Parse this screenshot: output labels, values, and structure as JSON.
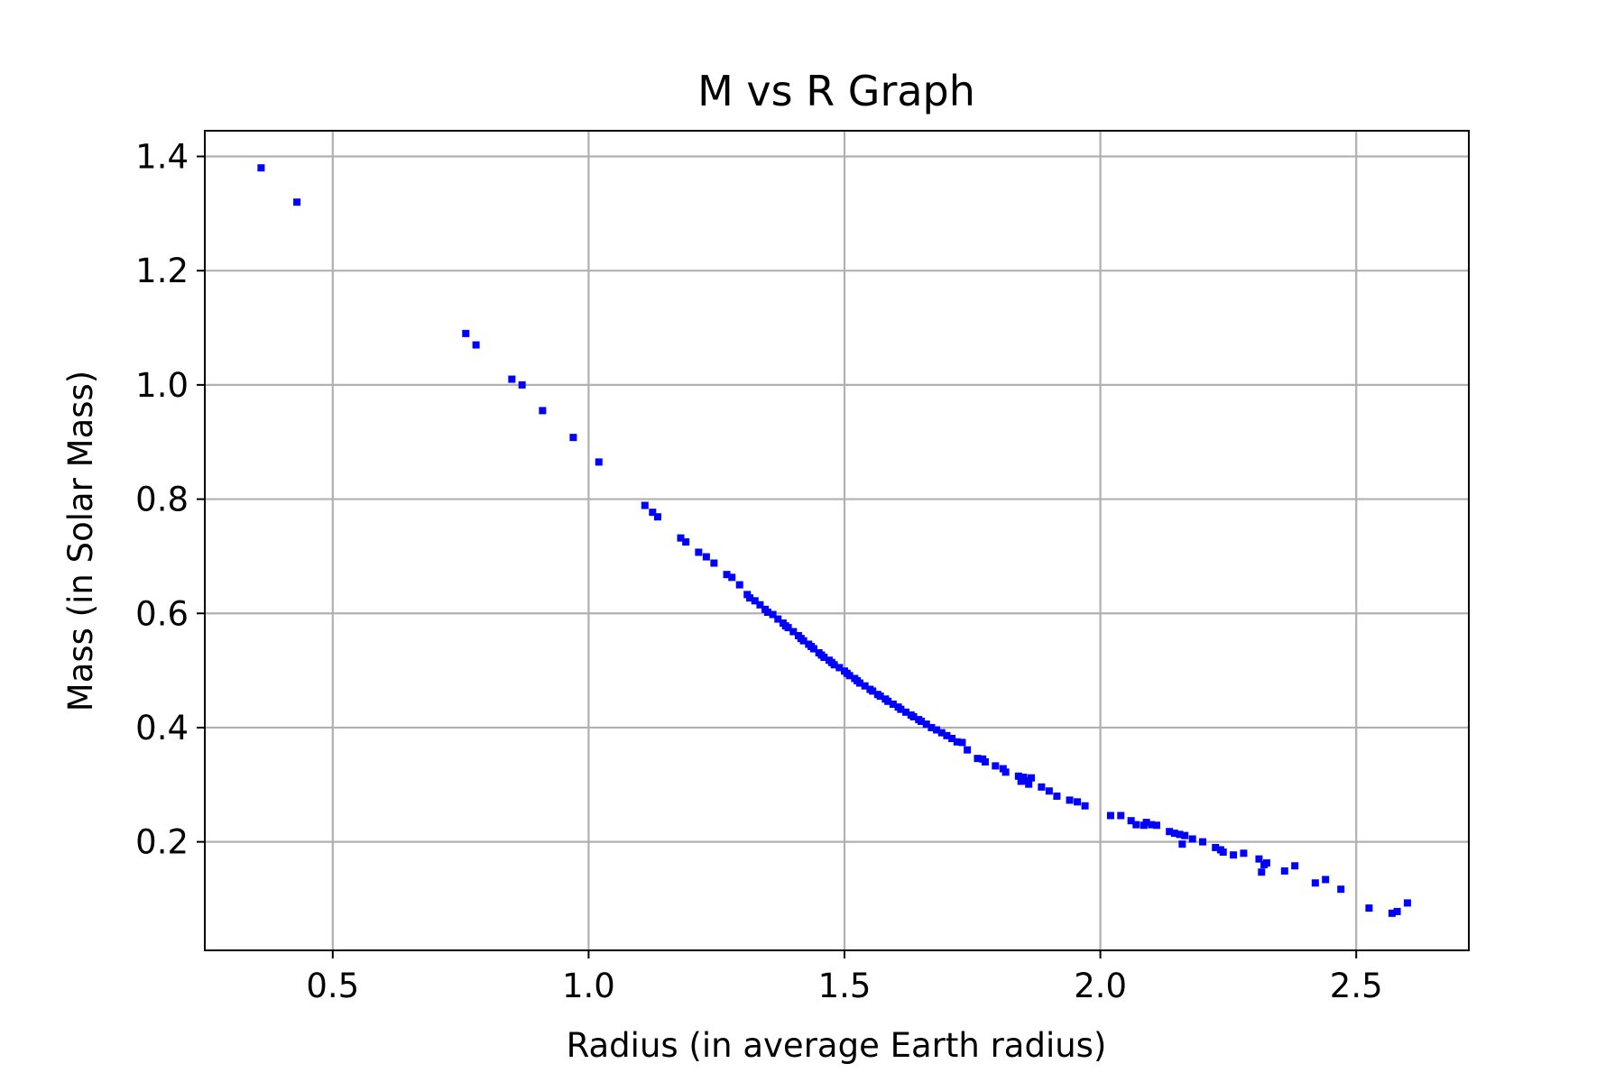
{
  "chart_data": {
    "type": "scatter",
    "title": "M vs R Graph",
    "xlabel": "Radius (in average Earth radius)",
    "ylabel": "Mass (in Solar Mass)",
    "xlim": [
      0.25,
      2.72
    ],
    "ylim": [
      0.01,
      1.445
    ],
    "xticks": [
      0.5,
      1.0,
      1.5,
      2.0,
      2.5
    ],
    "xtick_labels": [
      "0.5",
      "1.0",
      "1.5",
      "2.0",
      "2.5"
    ],
    "yticks": [
      0.2,
      0.4,
      0.6,
      0.8,
      1.0,
      1.2,
      1.4
    ],
    "ytick_labels": [
      "0.2",
      "0.4",
      "0.6",
      "0.8",
      "1.0",
      "1.2",
      "1.4"
    ],
    "grid": true,
    "marker_color": "#0000ff",
    "grid_color": "#b0b0b0",
    "series": [
      {
        "points": [
          [
            0.36,
            1.38
          ],
          [
            0.43,
            1.32
          ],
          [
            0.76,
            1.09
          ],
          [
            0.78,
            1.07
          ],
          [
            0.85,
            1.01
          ],
          [
            0.87,
            1.0
          ],
          [
            0.91,
            0.955
          ],
          [
            0.97,
            0.908
          ],
          [
            1.02,
            0.865
          ],
          [
            1.11,
            0.789
          ],
          [
            1.125,
            0.777
          ],
          [
            1.135,
            0.769
          ],
          [
            1.18,
            0.732
          ],
          [
            1.19,
            0.725
          ],
          [
            1.215,
            0.707
          ],
          [
            1.23,
            0.699
          ],
          [
            1.245,
            0.688
          ],
          [
            1.27,
            0.668
          ],
          [
            1.28,
            0.663
          ],
          [
            1.295,
            0.65
          ],
          [
            1.31,
            0.633
          ],
          [
            1.315,
            0.627
          ],
          [
            1.325,
            0.622
          ],
          [
            1.335,
            0.615
          ],
          [
            1.345,
            0.607
          ],
          [
            1.35,
            0.602
          ],
          [
            1.36,
            0.598
          ],
          [
            1.37,
            0.59
          ],
          [
            1.38,
            0.583
          ],
          [
            1.385,
            0.578
          ],
          [
            1.39,
            0.575
          ],
          [
            1.4,
            0.568
          ],
          [
            1.41,
            0.561
          ],
          [
            1.415,
            0.556
          ],
          [
            1.42,
            0.552
          ],
          [
            1.43,
            0.546
          ],
          [
            1.435,
            0.542
          ],
          [
            1.44,
            0.538
          ],
          [
            1.45,
            0.531
          ],
          [
            1.455,
            0.527
          ],
          [
            1.46,
            0.523
          ],
          [
            1.47,
            0.518
          ],
          [
            1.475,
            0.514
          ],
          [
            1.48,
            0.51
          ],
          [
            1.49,
            0.505
          ],
          [
            1.5,
            0.499
          ],
          [
            1.505,
            0.495
          ],
          [
            1.51,
            0.491
          ],
          [
            1.52,
            0.486
          ],
          [
            1.525,
            0.482
          ],
          [
            1.53,
            0.478
          ],
          [
            1.54,
            0.473
          ],
          [
            1.55,
            0.467
          ],
          [
            1.555,
            0.464
          ],
          [
            1.565,
            0.458
          ],
          [
            1.57,
            0.455
          ],
          [
            1.58,
            0.45
          ],
          [
            1.585,
            0.446
          ],
          [
            1.595,
            0.441
          ],
          [
            1.605,
            0.436
          ],
          [
            1.61,
            0.432
          ],
          [
            1.62,
            0.427
          ],
          [
            1.63,
            0.422
          ],
          [
            1.635,
            0.419
          ],
          [
            1.645,
            0.414
          ],
          [
            1.65,
            0.411
          ],
          [
            1.66,
            0.406
          ],
          [
            1.67,
            0.4
          ],
          [
            1.68,
            0.396
          ],
          [
            1.69,
            0.391
          ],
          [
            1.7,
            0.386
          ],
          [
            1.71,
            0.381
          ],
          [
            1.72,
            0.375
          ],
          [
            1.73,
            0.374
          ],
          [
            1.74,
            0.361
          ],
          [
            1.76,
            0.346
          ],
          [
            1.77,
            0.345
          ],
          [
            1.775,
            0.34
          ],
          [
            1.795,
            0.333
          ],
          [
            1.81,
            0.328
          ],
          [
            1.815,
            0.322
          ],
          [
            1.84,
            0.315
          ],
          [
            1.845,
            0.306
          ],
          [
            1.85,
            0.313
          ],
          [
            1.855,
            0.307
          ],
          [
            1.86,
            0.301
          ],
          [
            1.865,
            0.312
          ],
          [
            1.885,
            0.296
          ],
          [
            1.9,
            0.289
          ],
          [
            1.915,
            0.28
          ],
          [
            1.94,
            0.273
          ],
          [
            1.955,
            0.27
          ],
          [
            1.97,
            0.263
          ],
          [
            2.02,
            0.246
          ],
          [
            2.04,
            0.246
          ],
          [
            2.06,
            0.237
          ],
          [
            2.07,
            0.23
          ],
          [
            2.085,
            0.229
          ],
          [
            2.09,
            0.234
          ],
          [
            2.1,
            0.23
          ],
          [
            2.11,
            0.229
          ],
          [
            2.135,
            0.218
          ],
          [
            2.145,
            0.215
          ],
          [
            2.155,
            0.213
          ],
          [
            2.16,
            0.196
          ],
          [
            2.165,
            0.211
          ],
          [
            2.18,
            0.205
          ],
          [
            2.2,
            0.2
          ],
          [
            2.225,
            0.19
          ],
          [
            2.235,
            0.186
          ],
          [
            2.24,
            0.182
          ],
          [
            2.26,
            0.177
          ],
          [
            2.28,
            0.18
          ],
          [
            2.31,
            0.17
          ],
          [
            2.315,
            0.147
          ],
          [
            2.32,
            0.16
          ],
          [
            2.325,
            0.163
          ],
          [
            2.36,
            0.149
          ],
          [
            2.38,
            0.158
          ],
          [
            2.42,
            0.128
          ],
          [
            2.44,
            0.134
          ],
          [
            2.47,
            0.117
          ],
          [
            2.525,
            0.084
          ],
          [
            2.57,
            0.075
          ],
          [
            2.58,
            0.078
          ],
          [
            2.6,
            0.093
          ]
        ]
      }
    ]
  }
}
